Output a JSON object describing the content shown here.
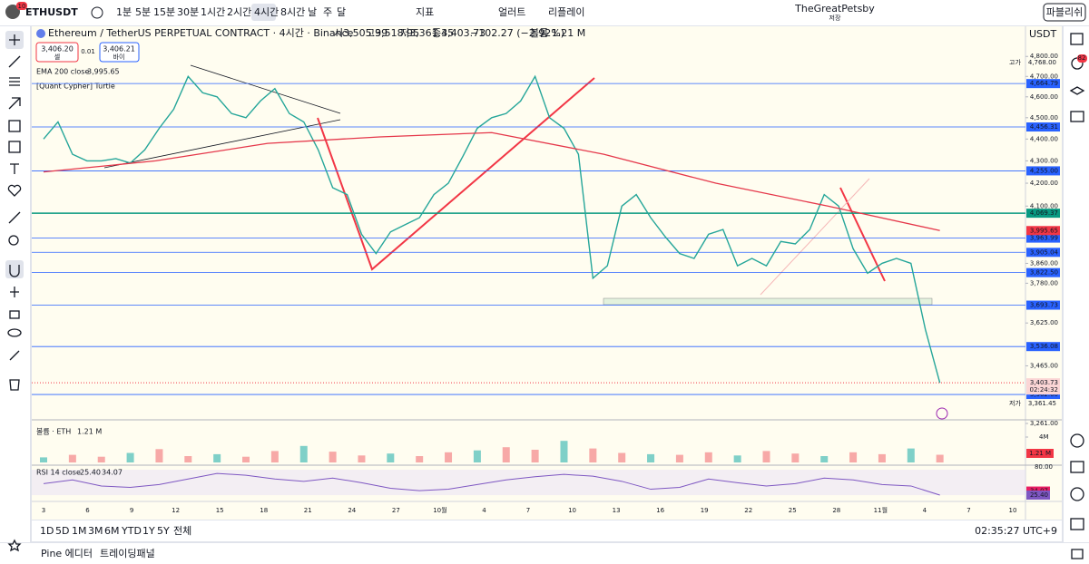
{
  "toolbar": {
    "badge": "10",
    "symbol": "ETHUSDT",
    "intervals": [
      "1분",
      "5분",
      "15분",
      "30분",
      "1시간",
      "2시간",
      "4시간",
      "8시간",
      "날",
      "주",
      "달"
    ],
    "indicators": "지표",
    "alerts": "얼러트",
    "replay": "리플레이",
    "user": "TheGreatPetsby",
    "save": "저장",
    "publish": "파블리쉬"
  },
  "right_badge": "82",
  "legend": {
    "title": "Ethereum / TetherUS PERPETUAL CONTRACT · 4시간 · Binance",
    "open": "시3,505.99",
    "high": "고3,518.95",
    "low": "저3,361.45",
    "close": "종3,403.73",
    "change": "−102.27 (−2.92%)",
    "volume": "볼륨 1.21 M",
    "sell_price": "3,406.20",
    "sell": "셀",
    "spread": "0.01",
    "buy_price": "3,406.21",
    "buy": "바이",
    "ema_label": "EMA 200 close",
    "ema_value": "3,995.65",
    "turtle": "[Quant Cypher] Turtle"
  },
  "price_axis": {
    "currency": "USDT",
    "ticks": [
      {
        "value": 4800,
        "label": "4,800.00"
      },
      {
        "value": 4700,
        "label": "4,700.00"
      },
      {
        "value": 4600,
        "label": "4,600.00"
      },
      {
        "value": 4500,
        "label": "4,500.00"
      },
      {
        "value": 4400,
        "label": "4,400.00"
      },
      {
        "value": 4300,
        "label": "4,300.00"
      },
      {
        "value": 4200,
        "label": "4,200.00"
      },
      {
        "value": 4100,
        "label": "4,100.00"
      },
      {
        "value": 3860,
        "label": "3,860.00"
      },
      {
        "value": 3780,
        "label": "3,780.00"
      },
      {
        "value": 3625,
        "label": "3,625.00"
      },
      {
        "value": 3465,
        "label": "3,465.00"
      },
      {
        "value": 3261,
        "label": "3,261.00"
      }
    ],
    "levels": [
      {
        "value": 4664.79,
        "label": "4,664.79"
      },
      {
        "value": 4456.31,
        "label": "4,456.31"
      },
      {
        "value": 4255,
        "label": "4,255.00"
      },
      {
        "value": 4069.37,
        "label": "4,069.37"
      },
      {
        "value": 3963.99,
        "label": "3,963.99"
      },
      {
        "value": 3905.04,
        "label": "3,905.04"
      },
      {
        "value": 3822.5,
        "label": "3,822.50"
      },
      {
        "value": 3693.73,
        "label": "3,693.73"
      },
      {
        "value": 3536.08,
        "label": "3,536.08"
      },
      {
        "value": 3362,
        "label": "3,362.00"
      }
    ],
    "ema_tag": {
      "value": 3995.65,
      "label": "3,995.65"
    },
    "last_tag": {
      "value": 3403.73,
      "label": "3,403.73"
    },
    "countdown": "02:24:32",
    "high_caption": "고가",
    "high_tag": {
      "value": 4768,
      "label": "4,768.00"
    },
    "low_caption": "저가",
    "low_tag": {
      "value": 3361.45,
      "label": "3,361.45"
    }
  },
  "chart_data": {
    "type": "line",
    "log_scale": true,
    "color": "#26a69a",
    "values": [
      4400,
      4480,
      4330,
      4300,
      4300,
      4310,
      4290,
      4350,
      4450,
      4540,
      4700,
      4620,
      4600,
      4520,
      4500,
      4580,
      4640,
      4520,
      4480,
      4350,
      4180,
      4150,
      3980,
      3900,
      3990,
      4020,
      4050,
      4150,
      4200,
      4320,
      4450,
      4500,
      4520,
      4580,
      4700,
      4500,
      4450,
      4330,
      3800,
      3850,
      4100,
      4150,
      4050,
      3970,
      3900,
      3880,
      3980,
      4000,
      3850,
      3880,
      3850,
      3950,
      3940,
      4000,
      4150,
      4100,
      3920,
      3820,
      3860,
      3880,
      3860,
      3600,
      3403.73
    ],
    "ema": {
      "color": "#e5374a",
      "values": [
        4250,
        4300,
        4380,
        4410,
        4430,
        4330,
        4200,
        4100,
        3995.65
      ]
    }
  },
  "volume": {
    "label": "볼륨 · ETH",
    "value": "1.21 M",
    "axis_label": "4M",
    "axis_value": 4,
    "tag": "1.21 M",
    "values": [
      0.8,
      1.2,
      0.9,
      1.5,
      2.1,
      1.0,
      1.3,
      0.9,
      1.8,
      2.6,
      1.7,
      1.1,
      1.4,
      1.0,
      1.6,
      1.9,
      2.4,
      2.0,
      3.4,
      2.2,
      1.5,
      1.3,
      1.2,
      1.6,
      1.1,
      1.8,
      1.4,
      1.0,
      1.6,
      1.3,
      2.2,
      1.21
    ]
  },
  "rsi": {
    "label": "RSI 14 close",
    "value": "25.40",
    "ma": "34.07",
    "axis_label": "80.00",
    "tag_ma": {
      "value": 34.07,
      "label": "34.07"
    },
    "tag_rsi": {
      "value": 25.4,
      "label": "25.40"
    },
    "values": [
      50,
      58,
      45,
      42,
      48,
      60,
      72,
      68,
      60,
      55,
      62,
      52,
      40,
      35,
      38,
      48,
      58,
      65,
      70,
      66,
      55,
      38,
      42,
      60,
      52,
      45,
      50,
      62,
      58,
      48,
      45,
      25.4
    ]
  },
  "time_axis": [
    "3",
    "6",
    "9",
    "12",
    "15",
    "18",
    "21",
    "24",
    "27",
    "10월",
    "4",
    "7",
    "10",
    "13",
    "16",
    "19",
    "22",
    "25",
    "28",
    "11월",
    "4",
    "7",
    "10"
  ],
  "bottom": {
    "ranges": [
      "1D",
      "5D",
      "1M",
      "3M",
      "6M",
      "YTD",
      "1Y",
      "5Y",
      "전체"
    ],
    "clock": "02:35:27 UTC+9"
  },
  "footer": {
    "pine": "Pine 에디터",
    "panel": "트레이딩패널"
  }
}
